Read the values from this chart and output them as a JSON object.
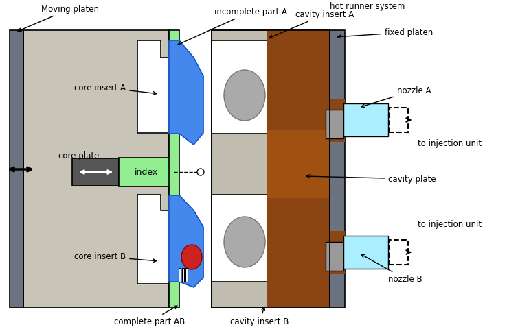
{
  "bg": "#ffffff",
  "c_moving_platen": "#6b7280",
  "c_core_plate": "#c8c4b8",
  "c_green": "#90EE90",
  "c_blue_light": "#4488EE",
  "c_blue_dark": "#1050BB",
  "c_red": "#CC2222",
  "c_brown": "#8B4513",
  "c_brown2": "#A05010",
  "c_fixed": "#6b7280",
  "c_cyan": "#AAEEFF",
  "c_cav_plate": "#C0BCB0",
  "c_dark_gray": "#555555",
  "c_outline": "#000000",
  "lbl_moving_platen": "Moving platen",
  "lbl_incomplete_A": "incomplete part A",
  "lbl_hot_runner": "hot runner system",
  "lbl_cavity_A": "cavity insert A",
  "lbl_fixed": "fixed platen",
  "lbl_nozzle_A": "nozzle A",
  "lbl_inject_A": "to injection unit",
  "lbl_cavity_plate": "cavity plate",
  "lbl_inject_B": "to injection unit",
  "lbl_nozzle_B": "nozzle B",
  "lbl_core_A": "core insert A",
  "lbl_core_plate": "core plate",
  "lbl_index": "index",
  "lbl_core_B": "core insert B",
  "lbl_complete_AB": "complete part AB",
  "lbl_cavity_B": "cavity insert B"
}
